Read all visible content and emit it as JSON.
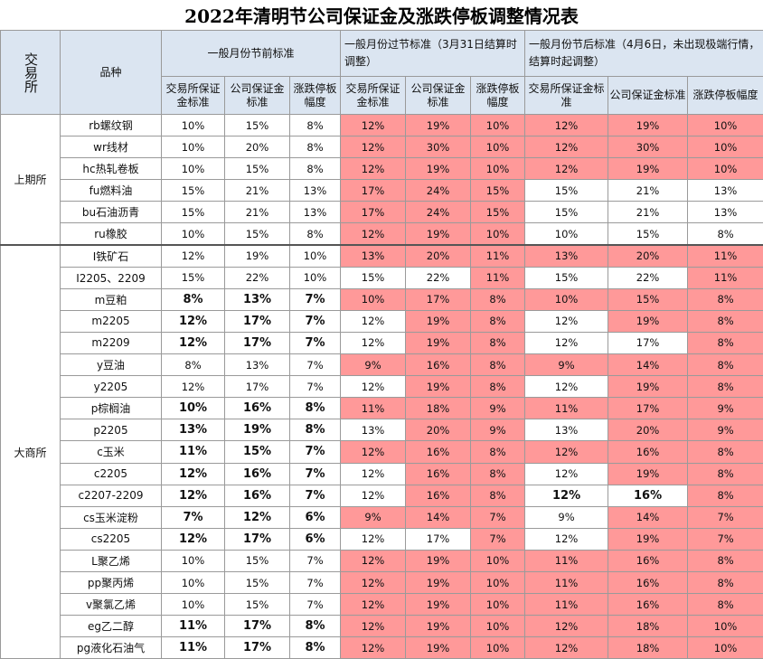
{
  "title": "2022年清明节公司保证金及涨跌停板调整情况表",
  "header": {
    "exchange": "交易所",
    "product": "品种",
    "group_pre": "一般月份节前标准",
    "group_holiday": "一般月份过节标准（3月31日结算时调整）",
    "group_post": "一般月份节后标准（4月6日，未出现极端行情，结算时起调整）",
    "col_exchange_margin": "交易所保证金标准",
    "col_company_margin": "公司保证金标准",
    "col_limit": "涨跌停板幅度",
    "col_exchange_margin_post": "交易所保证金标准",
    "col_company_margin_post": "公司保证金标准",
    "col_limit_post": "涨跌停板幅度"
  },
  "exchanges": [
    {
      "name": "上期所",
      "rows": 6
    },
    {
      "name": "大商所",
      "rows": 19
    }
  ],
  "rows": [
    {
      "product": "rb螺纹钢",
      "pre": [
        "10%",
        "15%",
        "8%"
      ],
      "hol": [
        "12%",
        "19%",
        "10%"
      ],
      "post": [
        "12%",
        "19%",
        "10%"
      ],
      "hol_hl": [
        1,
        1,
        1
      ],
      "post_hl": [
        1,
        1,
        1
      ],
      "bold": 0
    },
    {
      "product": "wr线材",
      "pre": [
        "10%",
        "20%",
        "8%"
      ],
      "hol": [
        "12%",
        "30%",
        "10%"
      ],
      "post": [
        "12%",
        "30%",
        "10%"
      ],
      "hol_hl": [
        1,
        1,
        1
      ],
      "post_hl": [
        1,
        1,
        1
      ],
      "bold": 0
    },
    {
      "product": "hc热轧卷板",
      "pre": [
        "10%",
        "15%",
        "8%"
      ],
      "hol": [
        "12%",
        "19%",
        "10%"
      ],
      "post": [
        "12%",
        "19%",
        "10%"
      ],
      "hol_hl": [
        1,
        1,
        1
      ],
      "post_hl": [
        1,
        1,
        1
      ],
      "bold": 0
    },
    {
      "product": "fu燃料油",
      "pre": [
        "15%",
        "21%",
        "13%"
      ],
      "hol": [
        "17%",
        "24%",
        "15%"
      ],
      "post": [
        "15%",
        "21%",
        "13%"
      ],
      "hol_hl": [
        1,
        1,
        1
      ],
      "post_hl": [
        0,
        0,
        0
      ],
      "bold": 0
    },
    {
      "product": "bu石油沥青",
      "pre": [
        "15%",
        "21%",
        "13%"
      ],
      "hol": [
        "17%",
        "24%",
        "15%"
      ],
      "post": [
        "15%",
        "21%",
        "13%"
      ],
      "hol_hl": [
        1,
        1,
        1
      ],
      "post_hl": [
        0,
        0,
        0
      ],
      "bold": 0
    },
    {
      "product": "ru橡胶",
      "pre": [
        "10%",
        "15%",
        "8%"
      ],
      "hol": [
        "12%",
        "19%",
        "10%"
      ],
      "post": [
        "10%",
        "15%",
        "8%"
      ],
      "hol_hl": [
        1,
        1,
        1
      ],
      "post_hl": [
        0,
        0,
        0
      ],
      "bold": 0
    },
    {
      "product": "I铁矿石",
      "pre": [
        "12%",
        "19%",
        "10%"
      ],
      "hol": [
        "13%",
        "20%",
        "11%"
      ],
      "post": [
        "13%",
        "20%",
        "11%"
      ],
      "hol_hl": [
        1,
        1,
        1
      ],
      "post_hl": [
        1,
        1,
        1
      ],
      "bold": 0
    },
    {
      "product": "I2205、2209",
      "pre": [
        "15%",
        "22%",
        "10%"
      ],
      "hol": [
        "15%",
        "22%",
        "11%"
      ],
      "post": [
        "15%",
        "22%",
        "11%"
      ],
      "hol_hl": [
        0,
        0,
        1
      ],
      "post_hl": [
        0,
        0,
        1
      ],
      "bold": 0
    },
    {
      "product": "m豆粕",
      "pre": [
        "8%",
        "13%",
        "7%"
      ],
      "hol": [
        "10%",
        "17%",
        "8%"
      ],
      "post": [
        "10%",
        "15%",
        "8%"
      ],
      "hol_hl": [
        1,
        1,
        1
      ],
      "post_hl": [
        1,
        1,
        1
      ],
      "bold": 1
    },
    {
      "product": "m2205",
      "pre": [
        "12%",
        "17%",
        "7%"
      ],
      "hol": [
        "12%",
        "19%",
        "8%"
      ],
      "post": [
        "12%",
        "19%",
        "8%"
      ],
      "hol_hl": [
        0,
        1,
        1
      ],
      "post_hl": [
        0,
        1,
        1
      ],
      "bold": 1
    },
    {
      "product": "m2209",
      "pre": [
        "12%",
        "17%",
        "7%"
      ],
      "hol": [
        "12%",
        "19%",
        "8%"
      ],
      "post": [
        "12%",
        "17%",
        "8%"
      ],
      "hol_hl": [
        0,
        1,
        1
      ],
      "post_hl": [
        0,
        0,
        1
      ],
      "bold": 1
    },
    {
      "product": "y豆油",
      "pre": [
        "8%",
        "13%",
        "7%"
      ],
      "hol": [
        "9%",
        "16%",
        "8%"
      ],
      "post": [
        "9%",
        "14%",
        "8%"
      ],
      "hol_hl": [
        1,
        1,
        1
      ],
      "post_hl": [
        1,
        1,
        1
      ],
      "bold": 0
    },
    {
      "product": "y2205",
      "pre": [
        "12%",
        "17%",
        "7%"
      ],
      "hol": [
        "12%",
        "19%",
        "8%"
      ],
      "post": [
        "12%",
        "19%",
        "8%"
      ],
      "hol_hl": [
        0,
        1,
        1
      ],
      "post_hl": [
        0,
        1,
        1
      ],
      "bold": 0
    },
    {
      "product": "p棕榈油",
      "pre": [
        "10%",
        "16%",
        "8%"
      ],
      "hol": [
        "11%",
        "18%",
        "9%"
      ],
      "post": [
        "11%",
        "17%",
        "9%"
      ],
      "hol_hl": [
        1,
        1,
        1
      ],
      "post_hl": [
        1,
        1,
        1
      ],
      "bold": 1
    },
    {
      "product": "p2205",
      "pre": [
        "13%",
        "19%",
        "8%"
      ],
      "hol": [
        "13%",
        "20%",
        "9%"
      ],
      "post": [
        "13%",
        "20%",
        "9%"
      ],
      "hol_hl": [
        0,
        1,
        1
      ],
      "post_hl": [
        0,
        1,
        1
      ],
      "bold": 1
    },
    {
      "product": "c玉米",
      "pre": [
        "11%",
        "15%",
        "7%"
      ],
      "hol": [
        "12%",
        "16%",
        "8%"
      ],
      "post": [
        "12%",
        "16%",
        "8%"
      ],
      "hol_hl": [
        1,
        1,
        1
      ],
      "post_hl": [
        1,
        1,
        1
      ],
      "bold": 1
    },
    {
      "product": "c2205",
      "pre": [
        "12%",
        "16%",
        "7%"
      ],
      "hol": [
        "12%",
        "16%",
        "8%"
      ],
      "post": [
        "12%",
        "19%",
        "8%"
      ],
      "hol_hl": [
        0,
        1,
        1
      ],
      "post_hl": [
        0,
        1,
        1
      ],
      "bold": 1
    },
    {
      "product": "c2207-2209",
      "pre": [
        "12%",
        "16%",
        "7%"
      ],
      "hol": [
        "12%",
        "16%",
        "8%"
      ],
      "post": [
        "12%",
        "16%",
        "8%"
      ],
      "hol_hl": [
        0,
        1,
        1
      ],
      "post_hl": [
        0,
        0,
        1
      ],
      "bold": 1,
      "post_bold": 1
    },
    {
      "product": "cs玉米淀粉",
      "pre": [
        "7%",
        "12%",
        "6%"
      ],
      "hol": [
        "9%",
        "14%",
        "7%"
      ],
      "post": [
        "9%",
        "14%",
        "7%"
      ],
      "hol_hl": [
        1,
        1,
        1
      ],
      "post_hl": [
        0,
        1,
        1
      ],
      "bold": 1
    },
    {
      "product": "cs2205",
      "pre": [
        "12%",
        "17%",
        "6%"
      ],
      "hol": [
        "12%",
        "17%",
        "7%"
      ],
      "post": [
        "12%",
        "19%",
        "7%"
      ],
      "hol_hl": [
        0,
        0,
        1
      ],
      "post_hl": [
        0,
        1,
        1
      ],
      "bold": 1
    },
    {
      "product": "L聚乙烯",
      "pre": [
        "10%",
        "15%",
        "7%"
      ],
      "hol": [
        "12%",
        "19%",
        "10%"
      ],
      "post": [
        "11%",
        "16%",
        "8%"
      ],
      "hol_hl": [
        1,
        1,
        1
      ],
      "post_hl": [
        1,
        1,
        1
      ],
      "bold": 0
    },
    {
      "product": "pp聚丙烯",
      "pre": [
        "10%",
        "15%",
        "7%"
      ],
      "hol": [
        "12%",
        "19%",
        "10%"
      ],
      "post": [
        "11%",
        "16%",
        "8%"
      ],
      "hol_hl": [
        1,
        1,
        1
      ],
      "post_hl": [
        1,
        1,
        1
      ],
      "bold": 0
    },
    {
      "product": "v聚氯乙烯",
      "pre": [
        "10%",
        "15%",
        "7%"
      ],
      "hol": [
        "12%",
        "19%",
        "10%"
      ],
      "post": [
        "11%",
        "16%",
        "8%"
      ],
      "hol_hl": [
        1,
        1,
        1
      ],
      "post_hl": [
        1,
        1,
        1
      ],
      "bold": 0
    },
    {
      "product": "eg乙二醇",
      "pre": [
        "11%",
        "17%",
        "8%"
      ],
      "hol": [
        "12%",
        "19%",
        "10%"
      ],
      "post": [
        "12%",
        "18%",
        "10%"
      ],
      "hol_hl": [
        1,
        1,
        1
      ],
      "post_hl": [
        1,
        1,
        1
      ],
      "bold": 1
    },
    {
      "product": "pg液化石油气",
      "pre": [
        "11%",
        "17%",
        "8%"
      ],
      "hol": [
        "12%",
        "19%",
        "10%"
      ],
      "post": [
        "12%",
        "18%",
        "10%"
      ],
      "hol_hl": [
        1,
        1,
        1
      ],
      "post_hl": [
        1,
        1,
        1
      ],
      "bold": 1
    }
  ]
}
